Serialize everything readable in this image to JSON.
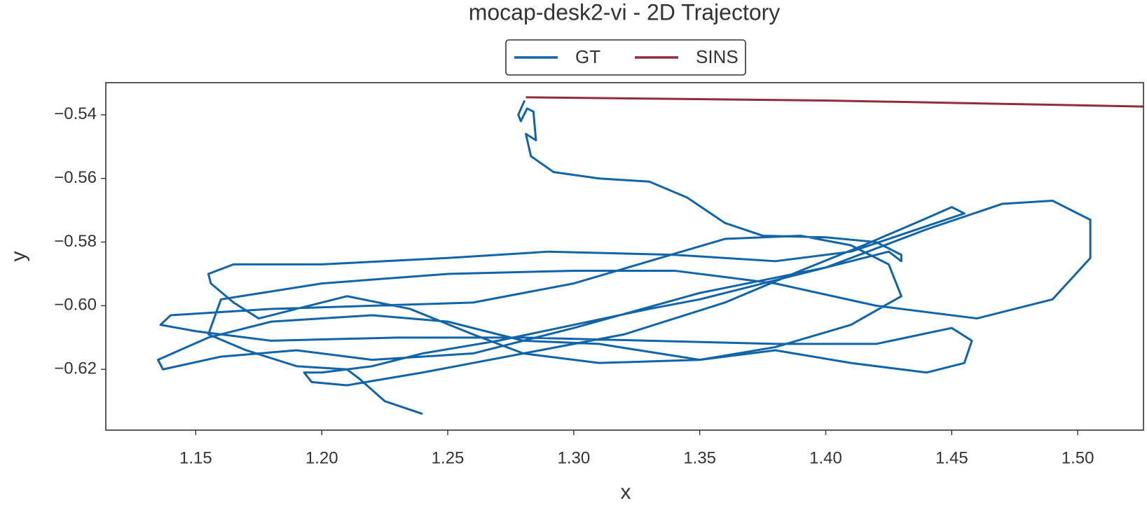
{
  "chart_data": {
    "type": "line",
    "title": "mocap-desk2-vi - 2D Trajectory",
    "x_label": "x",
    "y_label": "y",
    "legend": "upper center",
    "xlim": [
      1.1143,
      1.5261
    ],
    "ylim": [
      -0.6391,
      -0.5299
    ],
    "xticks": [
      1.15,
      {
        "value": 1.2,
        "label": "1.20"
      },
      1.25,
      {
        "value": 1.3,
        "label": "1.30"
      },
      1.35,
      {
        "value": 1.4,
        "label": "1.40"
      },
      1.45,
      {
        "value": 1.5,
        "label": "1.50"
      }
    ],
    "yticks": [
      {
        "value": -0.54,
        "label": "−0.54"
      },
      {
        "value": -0.56,
        "label": "−0.56"
      },
      {
        "value": -0.58,
        "label": "−0.58"
      },
      {
        "value": -0.6,
        "label": "−0.60"
      },
      {
        "value": -0.62,
        "label": "−0.62"
      }
    ],
    "series": [
      {
        "name": "GT",
        "color": "#1064a8",
        "x": [
          1.2805,
          1.278,
          1.279,
          1.2815,
          1.284,
          1.285,
          1.281,
          1.283,
          1.292,
          1.31,
          1.33,
          1.345,
          1.36,
          1.375,
          1.4,
          1.42,
          1.43,
          1.43,
          1.425,
          1.41,
          1.39,
          1.37,
          1.35,
          1.33,
          1.3,
          1.27,
          1.24,
          1.22,
          1.2,
          1.193,
          1.196,
          1.21,
          1.24,
          1.28,
          1.32,
          1.36,
          1.39,
          1.415,
          1.44,
          1.45,
          1.455,
          1.44,
          1.41,
          1.38,
          1.34,
          1.29,
          1.25,
          1.2,
          1.165,
          1.155,
          1.156,
          1.165,
          1.175,
          1.19,
          1.21,
          1.235,
          1.26,
          1.28,
          1.31,
          1.35,
          1.38,
          1.41,
          1.43,
          1.425,
          1.41,
          1.39,
          1.36,
          1.33,
          1.3,
          1.26,
          1.22,
          1.18,
          1.14,
          1.136,
          1.15,
          1.18,
          1.23,
          1.28,
          1.33,
          1.38,
          1.42,
          1.45,
          1.458,
          1.455,
          1.44,
          1.41,
          1.38,
          1.35,
          1.31,
          1.28,
          1.25,
          1.22,
          1.18,
          1.155,
          1.135,
          1.137,
          1.16,
          1.19,
          1.22,
          1.26,
          1.3,
          1.35,
          1.4,
          1.44,
          1.47,
          1.49,
          1.505,
          1.505,
          1.49,
          1.46,
          1.42,
          1.38,
          1.34,
          1.3,
          1.25,
          1.2,
          1.16,
          1.155,
          1.17,
          1.19,
          1.21,
          1.215,
          1.225,
          1.24
        ],
        "values": [
          -0.5355,
          -0.54,
          -0.542,
          -0.538,
          -0.539,
          -0.548,
          -0.546,
          -0.553,
          -0.558,
          -0.56,
          -0.561,
          -0.566,
          -0.574,
          -0.578,
          -0.5785,
          -0.58,
          -0.584,
          -0.586,
          -0.583,
          -0.586,
          -0.59,
          -0.594,
          -0.598,
          -0.601,
          -0.606,
          -0.611,
          -0.615,
          -0.619,
          -0.621,
          -0.621,
          -0.624,
          -0.625,
          -0.621,
          -0.615,
          -0.609,
          -0.599,
          -0.589,
          -0.581,
          -0.5725,
          -0.569,
          -0.571,
          -0.575,
          -0.583,
          -0.586,
          -0.584,
          -0.583,
          -0.585,
          -0.587,
          -0.587,
          -0.59,
          -0.593,
          -0.599,
          -0.604,
          -0.601,
          -0.597,
          -0.601,
          -0.609,
          -0.615,
          -0.618,
          -0.617,
          -0.613,
          -0.606,
          -0.597,
          -0.587,
          -0.581,
          -0.578,
          -0.579,
          -0.586,
          -0.593,
          -0.599,
          -0.6,
          -0.601,
          -0.603,
          -0.606,
          -0.608,
          -0.611,
          -0.61,
          -0.61,
          -0.611,
          -0.612,
          -0.612,
          -0.607,
          -0.611,
          -0.618,
          -0.621,
          -0.618,
          -0.614,
          -0.617,
          -0.612,
          -0.611,
          -0.605,
          -0.603,
          -0.605,
          -0.61,
          -0.617,
          -0.62,
          -0.616,
          -0.614,
          -0.617,
          -0.615,
          -0.607,
          -0.596,
          -0.588,
          -0.576,
          -0.568,
          -0.567,
          -0.573,
          -0.585,
          -0.598,
          -0.604,
          -0.6,
          -0.593,
          -0.589,
          -0.589,
          -0.59,
          -0.593,
          -0.598,
          -0.609,
          -0.614,
          -0.619,
          -0.62,
          -0.623,
          -0.63,
          -0.634
        ]
      },
      {
        "name": "SINS",
        "color": "#8f2d3c",
        "x": [
          1.281,
          1.4,
          1.526
        ],
        "values": [
          -0.5345,
          -0.5355,
          -0.5374
        ]
      }
    ]
  }
}
